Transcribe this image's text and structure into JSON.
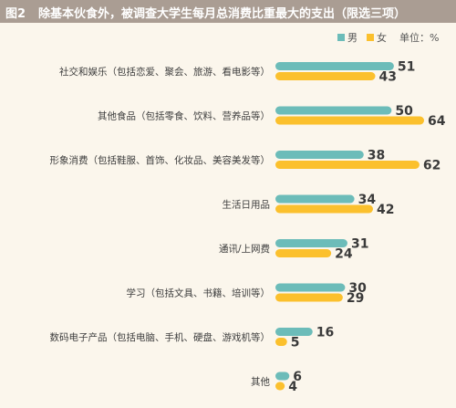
{
  "header": {
    "figure_label": "图2",
    "title": "除基本伙食外，被调查大学生每月总消费比重最大的支出（限选三项）"
  },
  "legend": {
    "unit": "单位：%"
  },
  "colors": {
    "male": "#6cbcb9",
    "female": "#fbc02d",
    "header_bg": "#aa9d93",
    "label_text": "#3d3d3d",
    "value_text": "#3a3a3a"
  },
  "chart_data": {
    "type": "bar",
    "orientation": "horizontal",
    "categories": [
      "社交和娱乐（包括恋爱、聚会、旅游、看电影等）",
      "其他食品（包括零食、饮料、营养品等）",
      "形象消费（包括鞋服、首饰、化妆品、美容美发等）",
      "生活日用品",
      "通讯/上网费",
      "学习（包括文具、书籍、培训等）",
      "数码电子产品（包括电脑、手机、硬盘、游戏机等）",
      "其他"
    ],
    "series": [
      {
        "name": "男",
        "values": [
          51,
          50,
          38,
          34,
          31,
          30,
          16,
          6
        ]
      },
      {
        "name": "女",
        "values": [
          43,
          64,
          62,
          42,
          24,
          29,
          5,
          4
        ]
      }
    ],
    "xlim": [
      0,
      64
    ],
    "grid": false,
    "legend_position": "top-right",
    "data_labels": true
  }
}
